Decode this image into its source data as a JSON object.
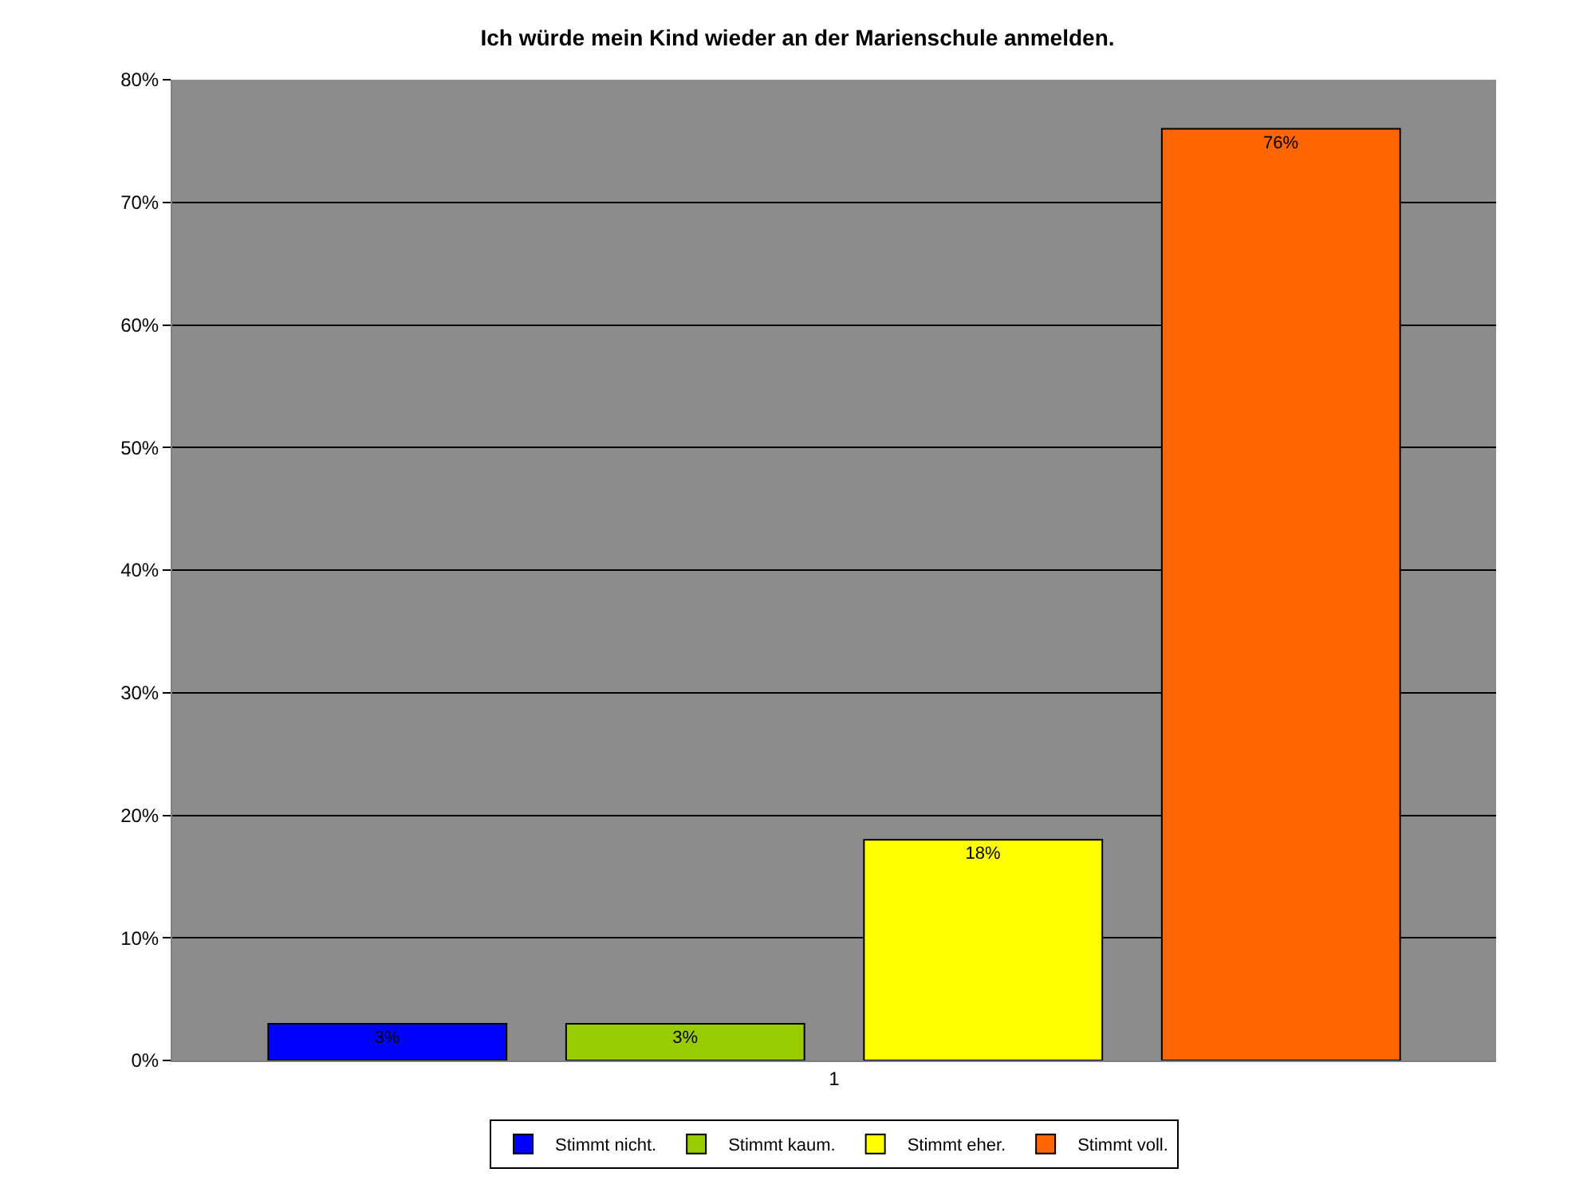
{
  "chart_data": {
    "type": "bar",
    "title": "Ich würde mein Kind wieder an der Marienschule anmelden.",
    "categories": [
      "1"
    ],
    "series": [
      {
        "name": "Stimmt nicht.",
        "color": "#0000ff",
        "values": [
          3
        ],
        "value_labels": [
          "3%"
        ]
      },
      {
        "name": "Stimmt kaum.",
        "color": "#99cc00",
        "values": [
          3
        ],
        "value_labels": [
          "3%"
        ]
      },
      {
        "name": "Stimmt eher.",
        "color": "#ffff00",
        "values": [
          18
        ],
        "value_labels": [
          "18%"
        ]
      },
      {
        "name": "Stimmt voll.",
        "color": "#ff6600",
        "values": [
          76
        ],
        "value_labels": [
          "76%"
        ]
      }
    ],
    "ylim": [
      0,
      80
    ],
    "yticks": [
      {
        "value": 0,
        "label": "0%"
      },
      {
        "value": 10,
        "label": "10%"
      },
      {
        "value": 20,
        "label": "20%"
      },
      {
        "value": 30,
        "label": "30%"
      },
      {
        "value": 40,
        "label": "40%"
      },
      {
        "value": 50,
        "label": "50%"
      },
      {
        "value": 60,
        "label": "60%"
      },
      {
        "value": 70,
        "label": "70%"
      },
      {
        "value": 80,
        "label": "80%"
      }
    ],
    "grid": "y",
    "legend": "bottom"
  }
}
